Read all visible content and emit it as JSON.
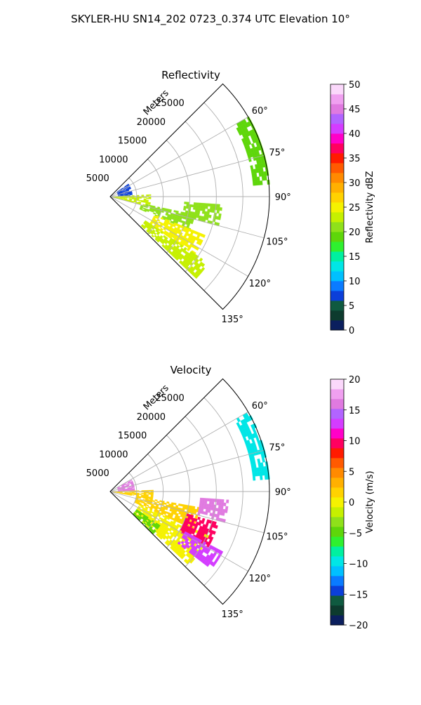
{
  "figure": {
    "title": "SKYLER-HU  SN14_202  0723_0.374 UTC Elevation 10°"
  },
  "chart_data": [
    {
      "type": "heatmap",
      "projection": "polar-sector",
      "title": "Reflectivity",
      "range_label": "Meters",
      "range_ticks": [
        5000,
        10000,
        15000,
        20000,
        25000
      ],
      "range_tick_labels": [
        "5000",
        "10000",
        "15000",
        "20000",
        "25000"
      ],
      "range_max": 30000,
      "azimuth_range_deg": [
        45,
        135
      ],
      "azimuth_ticks_deg": [
        60,
        75,
        90,
        105,
        120,
        135
      ],
      "azimuth_tick_labels": [
        "60°",
        "75°",
        "90°",
        "105°",
        "120°",
        "135°"
      ],
      "grid": true,
      "colorbar": {
        "label": "Reflectivity dBZ",
        "range": [
          0,
          50
        ],
        "ticks": [
          0,
          5,
          10,
          15,
          20,
          25,
          30,
          35,
          40,
          45,
          50
        ],
        "tick_labels": [
          "0",
          "5",
          "10",
          "15",
          "20",
          "25",
          "30",
          "35",
          "40",
          "45",
          "50"
        ],
        "colors": [
          "#0b1f5e",
          "#0d3b2e",
          "#0f5a40",
          "#0b3fd9",
          "#0a7bff",
          "#00c0ff",
          "#00e6e6",
          "#00f0a0",
          "#2ff02f",
          "#5ed60a",
          "#8fe11a",
          "#c6f000",
          "#f5f200",
          "#ffd200",
          "#ffb000",
          "#ff8a00",
          "#ff5a00",
          "#ff1a00",
          "#ff0060",
          "#ff00c8",
          "#d43cff",
          "#b264ff",
          "#e07ae0",
          "#f0a0f0",
          "#fbd8fb"
        ]
      },
      "echo_regions": [
        {
          "az": [
            55,
            90
          ],
          "r": [
            1500,
            4000
          ],
          "value": 7
        },
        {
          "az": [
            87,
            103
          ],
          "r": [
            500,
            7500
          ],
          "value": 22
        },
        {
          "az": [
            102,
            112
          ],
          "r": [
            6000,
            16000
          ],
          "value": 20
        },
        {
          "az": [
            112,
            124
          ],
          "r": [
            9000,
            19000
          ],
          "value": 24
        },
        {
          "az": [
            124,
            133
          ],
          "r": [
            8000,
            22000
          ],
          "value": 22
        },
        {
          "az": [
            94,
            104
          ],
          "r": [
            14000,
            21000
          ],
          "value": 20
        },
        {
          "az": [
            60,
            84
          ],
          "r": [
            27000,
            30000
          ],
          "value": 18
        }
      ]
    },
    {
      "type": "heatmap",
      "projection": "polar-sector",
      "title": "Velocity",
      "range_label": "Meters",
      "range_ticks": [
        5000,
        10000,
        15000,
        20000,
        25000
      ],
      "range_tick_labels": [
        "5000",
        "10000",
        "15000",
        "20000",
        "25000"
      ],
      "range_max": 30000,
      "azimuth_range_deg": [
        45,
        135
      ],
      "azimuth_ticks_deg": [
        60,
        75,
        90,
        105,
        120,
        135
      ],
      "azimuth_tick_labels": [
        "60°",
        "75°",
        "90°",
        "105°",
        "120°",
        "135°"
      ],
      "grid": true,
      "colorbar": {
        "label": "Velocity (m/s)",
        "range": [
          -20,
          20
        ],
        "ticks": [
          -20,
          -15,
          -10,
          -5,
          0,
          5,
          10,
          15,
          20
        ],
        "tick_labels": [
          "−20",
          "−15",
          "−10",
          "−5",
          "0",
          "5",
          "10",
          "15",
          "20"
        ],
        "colors": [
          "#0b1f5e",
          "#0d3b2e",
          "#0f5a40",
          "#0b3fd9",
          "#0a7bff",
          "#00c0ff",
          "#00e6e6",
          "#00f0a0",
          "#2ff02f",
          "#5ed60a",
          "#8fe11a",
          "#c6f000",
          "#f5f200",
          "#ffd200",
          "#ffb000",
          "#ff8a00",
          "#ff5a00",
          "#ff1a00",
          "#ff0060",
          "#ff00c8",
          "#d43cff",
          "#b264ff",
          "#e07ae0",
          "#f0a0f0",
          "#fbd8fb"
        ]
      },
      "echo_regions": [
        {
          "az": [
            60,
            90
          ],
          "r": [
            1500,
            4500
          ],
          "value": 16
        },
        {
          "az": [
            88,
            100
          ],
          "r": [
            500,
            8000
          ],
          "value": 2
        },
        {
          "az": [
            100,
            114
          ],
          "r": [
            5000,
            17000
          ],
          "value": 2
        },
        {
          "az": [
            114,
            132
          ],
          "r": [
            6000,
            20000
          ],
          "value": 0
        },
        {
          "az": [
            106,
            120
          ],
          "r": [
            15000,
            21000
          ],
          "value": 10
        },
        {
          "az": [
            94,
            104
          ],
          "r": [
            17000,
            22000
          ],
          "value": 16
        },
        {
          "az": [
            118,
            126
          ],
          "r": [
            16000,
            24000
          ],
          "value": 13
        },
        {
          "az": [
            124,
            134
          ],
          "r": [
            6000,
            11000
          ],
          "value": -5
        },
        {
          "az": [
            60,
            84
          ],
          "r": [
            27000,
            30000
          ],
          "value": -10
        }
      ]
    }
  ]
}
